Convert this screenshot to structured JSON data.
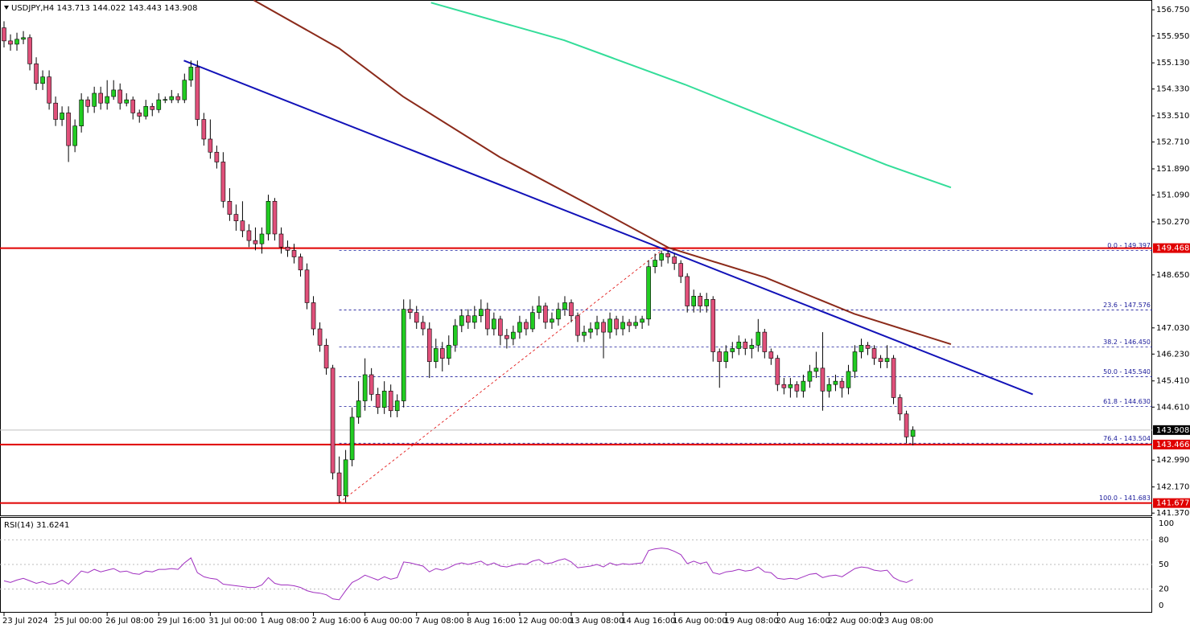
{
  "chart_data": {
    "type": "candlestick",
    "title": "USDJPY,H4",
    "bull_color": "#22cc22",
    "bear_color": "#e0507a",
    "xlim": [
      -0.625,
      178.125
    ],
    "xticks": [
      {
        "value": 0,
        "label": "23 Jul 2024"
      },
      {
        "value": 8,
        "label": "25 Jul 00:00"
      },
      {
        "value": 16,
        "label": "26 Jul 08:00"
      },
      {
        "value": 24,
        "label": "29 Jul 16:00"
      },
      {
        "value": 32,
        "label": "31 Jul 00:00"
      },
      {
        "value": 40,
        "label": "1 Aug 08:00"
      },
      {
        "value": 48,
        "label": "2 Aug 16:00"
      },
      {
        "value": 56,
        "label": "6 Aug 00:00"
      },
      {
        "value": 64,
        "label": "7 Aug 08:00"
      },
      {
        "value": 72,
        "label": "8 Aug 16:00"
      },
      {
        "value": 80,
        "label": "12 Aug 00:00"
      },
      {
        "value": 88,
        "label": "13 Aug 08:00"
      },
      {
        "value": 96,
        "label": "14 Aug 16:00"
      },
      {
        "value": 104,
        "label": "16 Aug 00:00"
      },
      {
        "value": 112,
        "label": "19 Aug 08:00"
      },
      {
        "value": 120,
        "label": "20 Aug 16:00"
      },
      {
        "value": 128,
        "label": "22 Aug 00:00"
      },
      {
        "value": 136,
        "label": "23 Aug 08:00"
      }
    ],
    "ylim": [
      141.3,
      157.05
    ],
    "yticks": [
      {
        "value": 156.75,
        "label": "156.750"
      },
      {
        "value": 155.95,
        "label": "155.950"
      },
      {
        "value": 155.13,
        "label": "155.130"
      },
      {
        "value": 154.33,
        "label": "154.330"
      },
      {
        "value": 153.51,
        "label": "153.510"
      },
      {
        "value": 152.71,
        "label": "152.710"
      },
      {
        "value": 151.89,
        "label": "151.890"
      },
      {
        "value": 151.09,
        "label": "151.090"
      },
      {
        "value": 150.27,
        "label": "150.270"
      },
      {
        "value": 148.65,
        "label": "148.650"
      },
      {
        "value": 147.03,
        "label": "147.030"
      },
      {
        "value": 146.23,
        "label": "146.230"
      },
      {
        "value": 145.41,
        "label": "145.410"
      },
      {
        "value": 144.61,
        "label": "144.610"
      },
      {
        "value": 142.99,
        "label": "142.990"
      },
      {
        "value": 142.17,
        "label": "142.170"
      },
      {
        "value": 141.37,
        "label": "141.370"
      }
    ],
    "candles": [
      [
        156.2,
        156.4,
        155.6,
        155.8
      ],
      [
        155.8,
        156.0,
        155.5,
        155.7
      ],
      [
        155.7,
        156.05,
        155.5,
        155.85
      ],
      [
        155.85,
        156.1,
        155.7,
        155.9
      ],
      [
        155.9,
        156.0,
        154.9,
        155.1
      ],
      [
        155.1,
        155.3,
        154.3,
        154.5
      ],
      [
        154.5,
        154.9,
        154.3,
        154.7
      ],
      [
        154.7,
        154.9,
        153.7,
        153.9
      ],
      [
        153.9,
        154.1,
        153.2,
        153.4
      ],
      [
        153.4,
        153.8,
        153.2,
        153.6
      ],
      [
        153.6,
        153.8,
        152.1,
        152.6
      ],
      [
        152.6,
        153.4,
        152.4,
        153.2
      ],
      [
        153.2,
        154.2,
        153.0,
        154.0
      ],
      [
        154.0,
        154.1,
        153.6,
        153.8
      ],
      [
        153.8,
        154.4,
        153.6,
        154.2
      ],
      [
        154.2,
        154.4,
        153.7,
        153.9
      ],
      [
        153.9,
        154.6,
        153.7,
        154.1
      ],
      [
        154.1,
        154.6,
        154.0,
        154.3
      ],
      [
        154.3,
        154.5,
        153.7,
        153.9
      ],
      [
        153.9,
        154.2,
        153.8,
        154.0
      ],
      [
        154.0,
        154.1,
        153.4,
        153.6
      ],
      [
        153.6,
        153.7,
        153.3,
        153.5
      ],
      [
        153.5,
        154.0,
        153.4,
        153.8
      ],
      [
        153.8,
        153.9,
        153.5,
        153.7
      ],
      [
        153.7,
        154.2,
        153.6,
        154.0
      ],
      [
        154.0,
        154.1,
        153.9,
        154.01
      ],
      [
        154.0,
        154.3,
        153.9,
        154.1
      ],
      [
        154.1,
        154.2,
        153.9,
        154.0
      ],
      [
        154.0,
        154.8,
        153.9,
        154.6
      ],
      [
        154.6,
        155.2,
        154.4,
        155.0
      ],
      [
        155.0,
        155.2,
        153.2,
        153.4
      ],
      [
        153.4,
        153.6,
        152.6,
        152.8
      ],
      [
        152.8,
        153.4,
        152.2,
        152.4
      ],
      [
        152.4,
        152.6,
        151.9,
        152.1
      ],
      [
        152.1,
        152.4,
        150.7,
        150.9
      ],
      [
        150.9,
        151.3,
        150.3,
        150.5
      ],
      [
        150.5,
        150.8,
        150.0,
        150.3
      ],
      [
        150.3,
        150.9,
        149.8,
        150.0
      ],
      [
        150.0,
        150.2,
        149.5,
        149.7
      ],
      [
        149.7,
        150.1,
        149.4,
        149.6
      ],
      [
        149.6,
        150.1,
        149.3,
        149.9
      ],
      [
        149.9,
        151.1,
        149.7,
        150.9
      ],
      [
        150.9,
        151.0,
        149.7,
        149.9
      ],
      [
        149.9,
        150.1,
        149.3,
        149.5
      ],
      [
        149.5,
        149.7,
        149.2,
        149.4
      ],
      [
        149.4,
        149.6,
        149.0,
        149.2
      ],
      [
        149.2,
        149.3,
        148.6,
        148.8
      ],
      [
        148.8,
        149.0,
        147.6,
        147.8
      ],
      [
        147.8,
        148.0,
        146.8,
        147.0
      ],
      [
        147.0,
        147.2,
        146.3,
        146.5
      ],
      [
        146.5,
        146.7,
        145.6,
        145.8
      ],
      [
        145.8,
        145.9,
        142.4,
        142.6
      ],
      [
        142.6,
        143.1,
        141.683,
        141.9
      ],
      [
        141.9,
        143.3,
        141.7,
        143.0
      ],
      [
        143.0,
        144.6,
        142.8,
        144.3
      ],
      [
        144.3,
        145.4,
        144.1,
        144.8
      ],
      [
        144.8,
        146.1,
        144.5,
        145.6
      ],
      [
        145.6,
        145.8,
        144.8,
        145.0
      ],
      [
        145.0,
        145.2,
        144.4,
        144.6
      ],
      [
        144.6,
        145.4,
        144.4,
        145.1
      ],
      [
        145.1,
        145.3,
        144.3,
        144.5
      ],
      [
        144.5,
        145.0,
        144.3,
        144.8
      ],
      [
        144.8,
        147.9,
        144.6,
        147.6
      ],
      [
        147.6,
        147.9,
        147.3,
        147.5
      ],
      [
        147.5,
        147.7,
        147.0,
        147.2
      ],
      [
        147.2,
        147.4,
        146.8,
        147.0
      ],
      [
        147.0,
        147.2,
        145.5,
        146.0
      ],
      [
        146.0,
        146.7,
        145.8,
        146.4
      ],
      [
        146.4,
        146.6,
        145.7,
        146.1
      ],
      [
        146.1,
        146.8,
        145.9,
        146.5
      ],
      [
        146.5,
        147.3,
        146.3,
        147.1
      ],
      [
        147.1,
        147.6,
        146.9,
        147.4
      ],
      [
        147.4,
        147.6,
        147.0,
        147.2
      ],
      [
        147.2,
        147.7,
        147.0,
        147.4
      ],
      [
        147.4,
        147.9,
        147.2,
        147.6
      ],
      [
        147.6,
        147.8,
        146.8,
        147.0
      ],
      [
        147.0,
        147.5,
        146.8,
        147.3
      ],
      [
        147.3,
        147.4,
        146.5,
        146.8
      ],
      [
        146.8,
        147.0,
        146.4,
        146.7
      ],
      [
        146.7,
        147.1,
        146.5,
        146.9
      ],
      [
        146.9,
        147.4,
        146.7,
        147.2
      ],
      [
        147.2,
        147.3,
        146.8,
        147.0
      ],
      [
        147.0,
        147.7,
        146.9,
        147.5
      ],
      [
        147.5,
        148.0,
        147.3,
        147.7
      ],
      [
        147.7,
        147.8,
        147.0,
        147.2
      ],
      [
        147.2,
        147.5,
        147.0,
        147.3
      ],
      [
        147.3,
        147.8,
        147.1,
        147.6
      ],
      [
        147.6,
        148.0,
        147.4,
        147.8
      ],
      [
        147.8,
        147.9,
        147.2,
        147.4
      ],
      [
        147.4,
        147.5,
        146.6,
        146.8
      ],
      [
        146.8,
        147.1,
        146.6,
        146.9
      ],
      [
        146.9,
        147.2,
        146.7,
        147.0
      ],
      [
        147.0,
        147.4,
        146.8,
        147.2
      ],
      [
        147.2,
        147.3,
        146.1,
        146.9
      ],
      [
        146.9,
        147.5,
        146.7,
        147.3
      ],
      [
        147.3,
        147.4,
        146.8,
        147.0
      ],
      [
        147.0,
        147.4,
        146.8,
        147.2
      ],
      [
        147.2,
        147.3,
        146.9,
        147.1
      ],
      [
        147.1,
        147.4,
        147.0,
        147.2
      ],
      [
        147.2,
        147.4,
        147.0,
        147.3
      ],
      [
        147.3,
        149.1,
        147.1,
        148.9
      ],
      [
        148.9,
        149.3,
        148.7,
        149.1
      ],
      [
        149.1,
        149.397,
        148.9,
        149.3
      ],
      [
        149.3,
        149.4,
        149.0,
        149.2
      ],
      [
        149.2,
        149.3,
        148.8,
        149.0
      ],
      [
        149.0,
        149.1,
        148.4,
        148.6
      ],
      [
        148.6,
        148.7,
        147.5,
        147.7
      ],
      [
        147.7,
        148.2,
        147.5,
        148.0
      ],
      [
        148.0,
        148.1,
        147.5,
        147.7
      ],
      [
        147.7,
        148.1,
        147.5,
        147.9
      ],
      [
        147.9,
        148.0,
        146.0,
        146.3
      ],
      [
        146.3,
        146.4,
        145.2,
        146.0
      ],
      [
        146.0,
        146.5,
        145.8,
        146.3
      ],
      [
        146.3,
        146.6,
        146.1,
        146.4
      ],
      [
        146.4,
        146.8,
        146.2,
        146.6
      ],
      [
        146.6,
        146.7,
        146.2,
        146.4
      ],
      [
        146.4,
        146.7,
        146.1,
        146.5
      ],
      [
        146.5,
        147.3,
        146.3,
        146.9
      ],
      [
        146.9,
        147.0,
        146.1,
        146.3
      ],
      [
        146.3,
        146.4,
        145.9,
        146.1
      ],
      [
        146.1,
        146.2,
        145.1,
        145.3
      ],
      [
        145.3,
        145.5,
        145.0,
        145.2
      ],
      [
        145.2,
        145.5,
        144.9,
        145.3
      ],
      [
        145.3,
        145.4,
        144.9,
        145.1
      ],
      [
        145.1,
        145.6,
        144.9,
        145.4
      ],
      [
        145.4,
        145.9,
        145.2,
        145.7
      ],
      [
        145.7,
        146.3,
        145.5,
        145.8
      ],
      [
        145.8,
        146.9,
        144.5,
        145.1
      ],
      [
        145.1,
        145.5,
        144.9,
        145.3
      ],
      [
        145.3,
        145.6,
        145.1,
        145.4
      ],
      [
        145.4,
        145.5,
        144.9,
        145.2
      ],
      [
        145.2,
        145.9,
        145.0,
        145.7
      ],
      [
        145.7,
        146.5,
        145.5,
        146.3
      ],
      [
        146.3,
        146.7,
        146.1,
        146.5
      ],
      [
        146.5,
        146.6,
        146.2,
        146.4
      ],
      [
        146.4,
        146.5,
        145.9,
        146.1
      ],
      [
        146.1,
        146.2,
        145.8,
        146.0
      ],
      [
        146.0,
        146.5,
        145.8,
        146.1
      ],
      [
        146.1,
        146.2,
        144.7,
        144.9
      ],
      [
        144.9,
        145.0,
        144.2,
        144.4
      ],
      [
        144.4,
        144.5,
        143.5,
        143.7
      ],
      [
        143.713,
        144.022,
        143.443,
        143.908
      ]
    ],
    "series": [
      {
        "color": "#8b2a1a",
        "x": [
          38.75,
          52,
          61.9,
          76.9,
          94.4,
          103.1,
          118.1,
          131.9,
          146.9
        ],
        "values": [
          157.045,
          155.57,
          154.1,
          152.25,
          150.41,
          149.48,
          148.57,
          147.46,
          146.53
        ]
      },
      {
        "color": "#33dd99",
        "x": [
          66.25,
          86.9,
          105.6,
          124.4,
          136.9,
          146.9
        ],
        "values": [
          156.97,
          155.82,
          154.47,
          152.99,
          152.01,
          151.32
        ]
      }
    ],
    "trendline": {
      "color": "#1212b8",
      "x": [
        27.9,
        159.6
      ],
      "values": [
        155.2,
        145.0
      ]
    },
    "levels": [
      {
        "value": 149.468,
        "color": "#e00000"
      },
      {
        "value": 143.466,
        "color": "#e00000"
      },
      {
        "value": 141.677,
        "color": "#e00000"
      }
    ],
    "fib": {
      "color": "#1a1a9a",
      "x": [
        52,
        102
      ],
      "levels": [
        {
          "value": 149.397,
          "label": "0.0 - 149.397"
        },
        {
          "value": 147.576,
          "label": "23.6 - 147.576"
        },
        {
          "value": 146.45,
          "label": "38.2 - 146.450"
        },
        {
          "value": 145.54,
          "label": "50.0 - 145.540"
        },
        {
          "value": 144.63,
          "label": "61.8 - 144.630"
        },
        {
          "value": 143.504,
          "label": "76.4 - 143.504"
        },
        {
          "value": 141.683,
          "label": "100.0 - 141.683"
        }
      ]
    },
    "indicator": {
      "title": "RSI(14)",
      "color": "#a030c0",
      "ylim": [
        0,
        100
      ],
      "yticks": [
        0,
        20,
        50,
        80,
        100
      ],
      "values": [
        30,
        28,
        31,
        33,
        30,
        27,
        29,
        26,
        27,
        31,
        26,
        34,
        42,
        40,
        44,
        41,
        43,
        45,
        41,
        42,
        39,
        38,
        42,
        41,
        44,
        44,
        45,
        44,
        52,
        58,
        40,
        35,
        33,
        32,
        26,
        25,
        24,
        23,
        22,
        22,
        25,
        34,
        27,
        25,
        25,
        24,
        22,
        18,
        16,
        15,
        13,
        8,
        7,
        18,
        28,
        32,
        37,
        34,
        31,
        35,
        32,
        34,
        53,
        52,
        50,
        48,
        41,
        45,
        43,
        46,
        50,
        52,
        50,
        52,
        54,
        49,
        52,
        48,
        47,
        49,
        51,
        50,
        54,
        56,
        51,
        52,
        55,
        57,
        53,
        46,
        47,
        48,
        50,
        47,
        52,
        49,
        51,
        50,
        51,
        52,
        67,
        69,
        70,
        69,
        66,
        62,
        51,
        54,
        51,
        53,
        40,
        38,
        41,
        42,
        44,
        42,
        43,
        47,
        41,
        40,
        33,
        32,
        33,
        32,
        35,
        38,
        39,
        34,
        36,
        37,
        35,
        40,
        45,
        47,
        46,
        43,
        42,
        43,
        34,
        30,
        28,
        31.6241
      ]
    }
  }
}
